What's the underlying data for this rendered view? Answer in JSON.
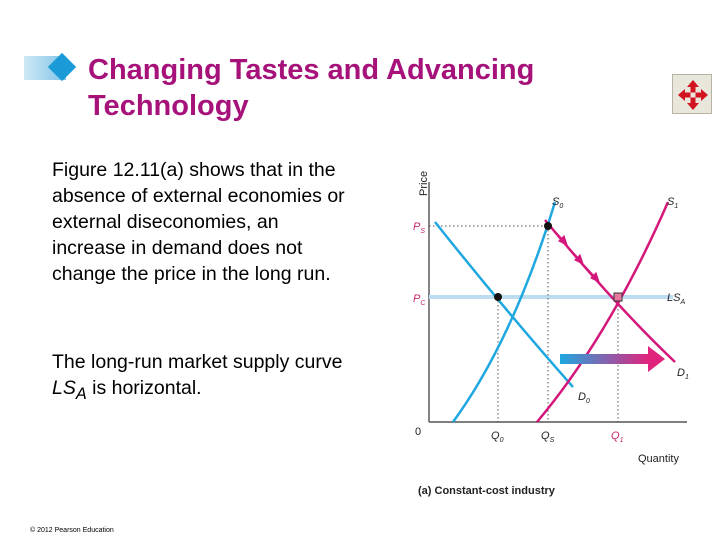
{
  "slide": {
    "title": "Changing Tastes and Advancing Technology",
    "paragraph1": "Figure 12.11(a) shows that in the absence of external economies or external diseconomies, an increase in demand does not change the price in the long run.",
    "paragraph2_pre": "The long-run market supply curve ",
    "paragraph2_var": "LS",
    "paragraph2_sub": "A",
    "paragraph2_post": " is horizontal.",
    "footer": "© 2012 Pearson Education",
    "nav_icon": "move-arrows-icon"
  },
  "diagram": {
    "y_axis_label": "Price",
    "x_axis_label": "Quantity",
    "origin": "0",
    "caption": "(a) Constant-cost industry",
    "price_labels": {
      "ps": "P",
      "ps_sub": "S",
      "pc": "P",
      "pc_sub": "C"
    },
    "quantity_labels": {
      "q0": "Q",
      "q0_sub": "0",
      "qs": "Q",
      "qs_sub": "S",
      "q1": "Q",
      "q1_sub": "1"
    },
    "curve_labels": {
      "s0": "S",
      "s0_sub": "0",
      "s1": "S",
      "s1_sub": "1",
      "lsa": "LS",
      "lsa_sub": "A",
      "d0": "D",
      "d0_sub": "0",
      "d1": "D",
      "d1_sub": "1"
    },
    "colors": {
      "supply_short_run_0": "#1fa7e0",
      "demand_0": "#1fa7e0",
      "supply_short_run_1": "#d4177a",
      "demand_1": "#d4177a",
      "long_run_supply": "#bcdcf0",
      "arrow_start": "#1fa7e0",
      "arrow_end": "#e0247e"
    }
  }
}
